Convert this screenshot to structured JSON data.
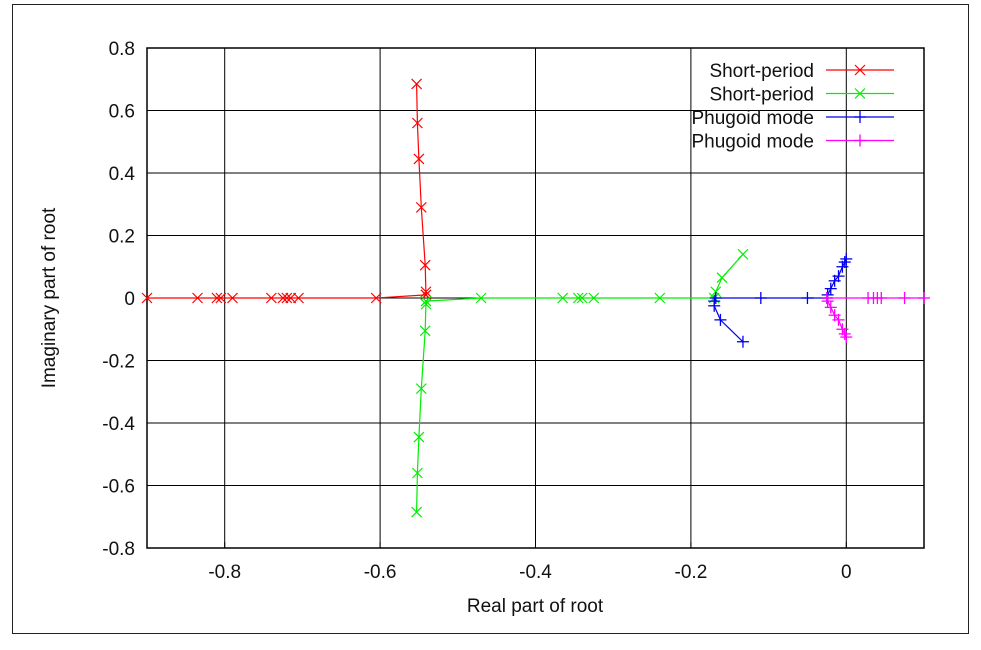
{
  "chart_data": {
    "type": "scatter",
    "title": "",
    "xlabel": "Real part of root",
    "ylabel": "Imaginary part of root",
    "xlim": [
      -0.9,
      0.1
    ],
    "ylim": [
      -0.8,
      0.8
    ],
    "xticks": [
      -0.8,
      -0.6,
      -0.4,
      -0.2,
      0
    ],
    "xtick_labels": [
      "-0.8",
      "-0.6",
      "-0.4",
      "-0.2",
      "0"
    ],
    "yticks": [
      -0.8,
      -0.6,
      -0.4,
      -0.2,
      0,
      0.2,
      0.4,
      0.6,
      0.8
    ],
    "ytick_labels": [
      "-0.8",
      "-0.6",
      "-0.4",
      "-0.2",
      "0",
      "0.2",
      "0.4",
      "0.6",
      "0.8"
    ],
    "grid": true,
    "legend_position": "top-right",
    "series": [
      {
        "name": "Short-period",
        "color": "#ff0000",
        "marker": "x",
        "paths": [
          [
            [
              -0.553,
              0.685
            ],
            [
              -0.552,
              0.56
            ],
            [
              -0.55,
              0.445
            ],
            [
              -0.547,
              0.29
            ],
            [
              -0.542,
              0.105
            ],
            [
              -0.541,
              0.02
            ],
            [
              -0.541,
              0.01
            ]
          ],
          [
            [
              -0.9,
              0.0
            ],
            [
              -0.835,
              0.0
            ],
            [
              -0.81,
              0.0
            ],
            [
              -0.805,
              0.0
            ],
            [
              -0.79,
              0.0
            ],
            [
              -0.74,
              0.0
            ],
            [
              -0.725,
              0.0
            ],
            [
              -0.72,
              0.0
            ],
            [
              -0.715,
              0.0
            ],
            [
              -0.705,
              0.0
            ],
            [
              -0.605,
              0.0
            ],
            [
              -0.541,
              0.01
            ]
          ]
        ]
      },
      {
        "name": "Short-period",
        "color": "#00ee00",
        "marker": "x",
        "paths": [
          [
            [
              -0.553,
              -0.685
            ],
            [
              -0.552,
              -0.56
            ],
            [
              -0.55,
              -0.445
            ],
            [
              -0.547,
              -0.29
            ],
            [
              -0.542,
              -0.105
            ],
            [
              -0.541,
              -0.02
            ],
            [
              -0.541,
              -0.01
            ]
          ],
          [
            [
              -0.541,
              -0.01
            ],
            [
              -0.47,
              0.0
            ],
            [
              -0.365,
              0.0
            ],
            [
              -0.345,
              0.0
            ],
            [
              -0.34,
              0.0
            ],
            [
              -0.325,
              0.0
            ],
            [
              -0.24,
              0.0
            ],
            [
              -0.17,
              0.0
            ],
            [
              -0.168,
              0.02
            ],
            [
              -0.16,
              0.065
            ],
            [
              -0.133,
              0.14
            ]
          ]
        ]
      },
      {
        "name": "Phugoid mode",
        "color": "#0000ee",
        "marker": "+",
        "paths": [
          [
            [
              -0.133,
              -0.14
            ],
            [
              -0.162,
              -0.07
            ],
            [
              -0.17,
              -0.025
            ],
            [
              -0.17,
              -0.01
            ],
            [
              -0.168,
              0.0
            ],
            [
              -0.11,
              0.0
            ],
            [
              -0.05,
              0.0
            ],
            [
              -0.025,
              0.0
            ],
            [
              -0.024,
              0.01
            ],
            [
              -0.02,
              0.03
            ],
            [
              -0.015,
              0.055
            ],
            [
              -0.01,
              0.07
            ],
            [
              -0.005,
              0.1
            ],
            [
              -0.002,
              0.115
            ],
            [
              0.0,
              0.125
            ]
          ]
        ]
      },
      {
        "name": "Phugoid mode",
        "color": "#ff00ff",
        "marker": "+",
        "paths": [
          [
            [
              0.1,
              0.0
            ],
            [
              0.075,
              0.0
            ],
            [
              0.045,
              0.0
            ],
            [
              0.04,
              0.0
            ],
            [
              0.035,
              0.0
            ],
            [
              0.028,
              0.0
            ],
            [
              -0.025,
              0.0
            ],
            [
              -0.024,
              -0.01
            ],
            [
              -0.02,
              -0.03
            ],
            [
              -0.015,
              -0.055
            ],
            [
              -0.01,
              -0.07
            ],
            [
              -0.005,
              -0.1
            ],
            [
              -0.002,
              -0.115
            ],
            [
              0.0,
              -0.125
            ]
          ]
        ]
      }
    ]
  }
}
